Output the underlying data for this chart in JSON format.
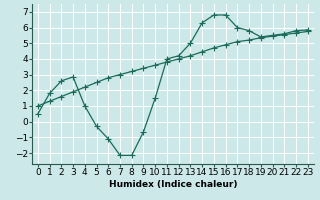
{
  "x": [
    0,
    1,
    2,
    3,
    4,
    5,
    6,
    7,
    8,
    9,
    10,
    11,
    12,
    13,
    14,
    15,
    16,
    17,
    18,
    19,
    20,
    21,
    22,
    23
  ],
  "curve1": [
    0.5,
    1.8,
    2.6,
    2.85,
    1.0,
    -0.3,
    -1.1,
    -2.15,
    -2.15,
    -0.65,
    1.5,
    4.0,
    4.2,
    5.0,
    6.3,
    6.8,
    6.8,
    6.0,
    5.8,
    5.4,
    5.5,
    5.6,
    5.8,
    5.85
  ],
  "curve2": [
    1.0,
    1.3,
    1.6,
    1.9,
    2.2,
    2.5,
    2.8,
    3.0,
    3.2,
    3.4,
    3.6,
    3.8,
    4.0,
    4.2,
    4.45,
    4.7,
    4.9,
    5.1,
    5.2,
    5.35,
    5.45,
    5.55,
    5.65,
    5.75
  ],
  "color1": "#1a6b5a",
  "color2": "#1a6b5a",
  "bg_color": "#cce8e8",
  "grid_color": "#ffffff",
  "xlabel": "Humidex (Indice chaleur)",
  "ylim": [
    -2.7,
    7.5
  ],
  "xlim": [
    -0.5,
    23.5
  ],
  "yticks": [
    -2,
    -1,
    0,
    1,
    2,
    3,
    4,
    5,
    6,
    7
  ],
  "xticks": [
    0,
    1,
    2,
    3,
    4,
    5,
    6,
    7,
    8,
    9,
    10,
    11,
    12,
    13,
    14,
    15,
    16,
    17,
    18,
    19,
    20,
    21,
    22,
    23
  ],
  "marker": "+",
  "linewidth": 0.9,
  "markersize": 4,
  "font_size": 6.5
}
